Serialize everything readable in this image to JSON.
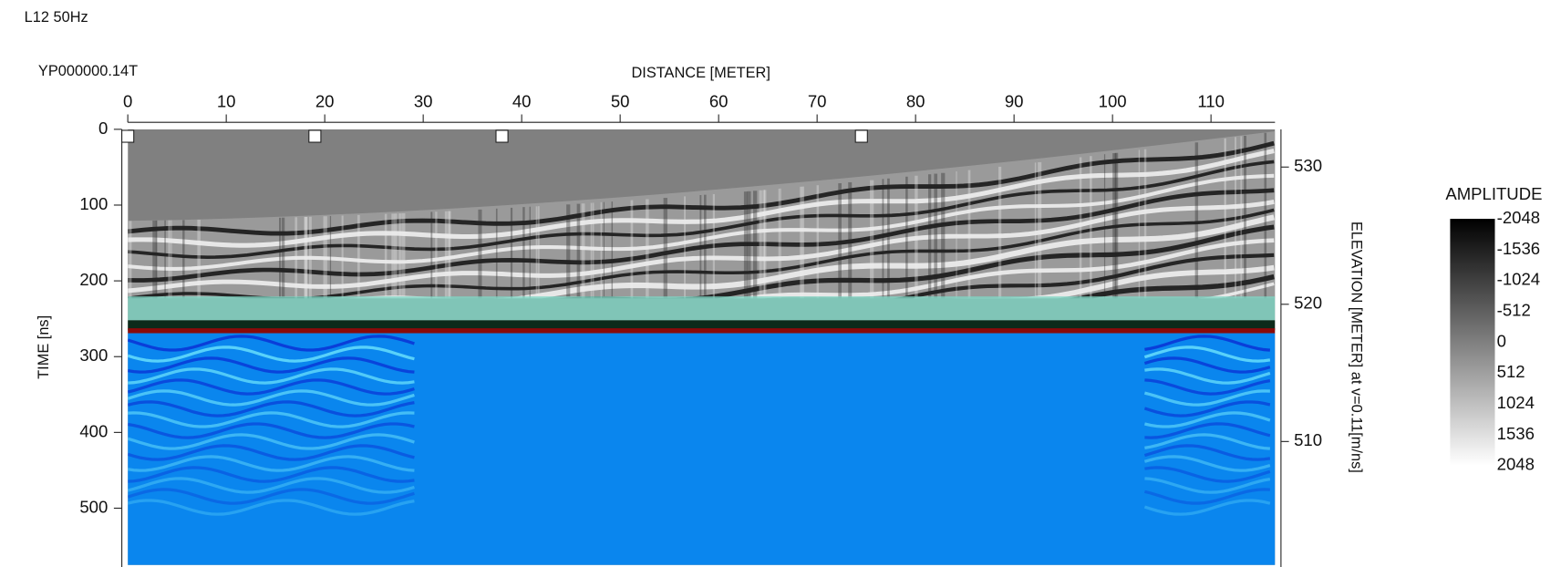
{
  "chart_data": {
    "type": "radargram",
    "title": "L12 50Hz",
    "file_name": "YP000000.14T",
    "x_label": "DISTANCE [METER]",
    "y_label": "TIME [ns]",
    "y2_label": "ELEVATION [METER] at v=0.11[m/ns]",
    "xlim": [
      0,
      116.5
    ],
    "xticks": [
      0,
      10,
      20,
      30,
      40,
      50,
      60,
      70,
      80,
      90,
      100,
      110
    ],
    "ylim": [
      0,
      575
    ],
    "yticks": [
      0,
      100,
      200,
      300,
      400,
      500
    ],
    "y2lim": [
      532.75,
      501
    ],
    "y2ticks": [
      510,
      520,
      530
    ],
    "markers": [
      0,
      19,
      38,
      74.5
    ],
    "colorbar_label": "AMPLITUDE",
    "clim": [
      -2048,
      2048
    ],
    "colorbar_ticks": [
      -2048,
      -1536,
      -1024,
      -512,
      0,
      512,
      1024,
      1536,
      2048
    ]
  }
}
